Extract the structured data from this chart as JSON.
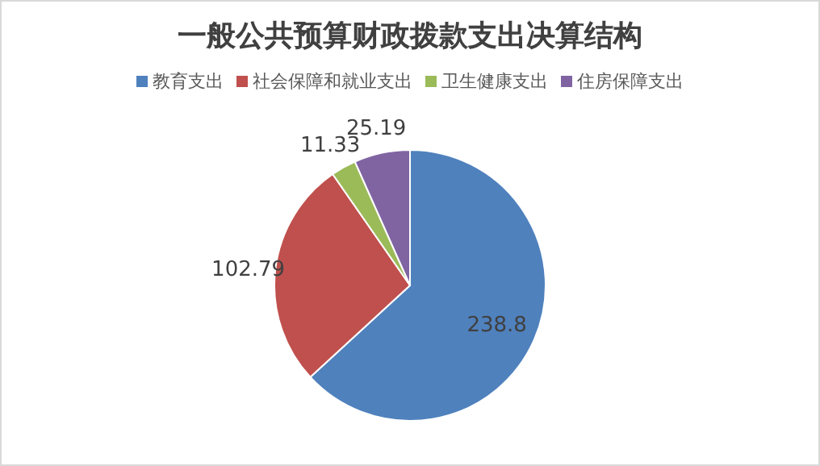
{
  "chart_data": {
    "type": "pie",
    "title": "一般公共预算财政拨款支出决算结构",
    "categories": [
      "教育支出",
      "社会保障和就业支出",
      "卫生健康支出",
      "住房保障支出"
    ],
    "values": [
      238.8,
      102.79,
      11.33,
      25.19
    ],
    "colors": [
      "#4f81bd",
      "#c0504d",
      "#9bbb59",
      "#8064a2"
    ],
    "data_labels": true,
    "legend": "top"
  }
}
